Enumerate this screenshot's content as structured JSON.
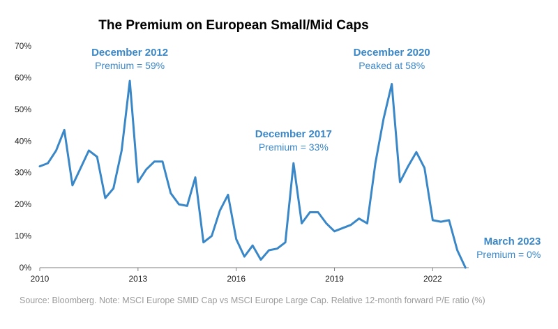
{
  "colors": {
    "line": "#3a87c8",
    "annotation": "#3a87c8",
    "axis": "#7f7f7f"
  },
  "chart_data": {
    "type": "line",
    "title": "The Premium on European Small/Mid Caps",
    "xlabel": "",
    "ylabel": "",
    "xlim": [
      2010,
      2023.1
    ],
    "ylim": [
      0,
      70
    ],
    "grid": false,
    "legend": "none",
    "x_ticks": [
      2010,
      2013,
      2016,
      2019,
      2022
    ],
    "x_tick_labels": [
      "2010",
      "2013",
      "2016",
      "2019",
      "2022"
    ],
    "y_ticks": [
      0,
      10,
      20,
      30,
      40,
      50,
      60,
      70
    ],
    "y_tick_labels": [
      "0%",
      "10%",
      "20%",
      "30%",
      "40%",
      "50%",
      "60%",
      "70%"
    ],
    "series": [
      {
        "x": [
          2010.0,
          2010.25,
          2010.5,
          2010.75,
          2011.0,
          2011.25,
          2011.5,
          2011.75,
          2012.0,
          2012.25,
          2012.5,
          2012.75,
          2013.0,
          2013.25,
          2013.5,
          2013.75,
          2014.0,
          2014.25,
          2014.5,
          2014.75,
          2015.0,
          2015.25,
          2015.5,
          2015.75,
          2016.0,
          2016.25,
          2016.5,
          2016.75,
          2017.0,
          2017.25,
          2017.5,
          2017.75,
          2018.0,
          2018.25,
          2018.5,
          2018.75,
          2019.0,
          2019.25,
          2019.5,
          2019.75,
          2020.0,
          2020.25,
          2020.5,
          2020.75,
          2021.0,
          2021.25,
          2021.5,
          2021.75,
          2022.0,
          2022.25,
          2022.5,
          2022.75,
          2023.0
        ],
        "values": [
          32,
          33,
          37,
          43.5,
          26,
          31.5,
          37,
          35,
          22,
          25,
          37,
          59,
          27,
          31,
          33.5,
          33.5,
          23.5,
          20,
          19.5,
          28.5,
          8,
          10,
          18,
          23,
          9,
          3.5,
          7,
          2.5,
          5.5,
          6,
          8,
          33,
          14,
          17.5,
          17.5,
          14,
          11.5,
          12.5,
          13.5,
          15.5,
          14,
          33,
          47,
          58,
          27,
          32,
          36.5,
          31.5,
          15,
          14.5,
          15,
          5.5,
          0
        ]
      }
    ],
    "annotations": [
      {
        "x": 2012.75,
        "y": 59,
        "title": "December 2012",
        "text": "Premium = 59%",
        "anchor": "middle"
      },
      {
        "x": 2017.75,
        "y": 33,
        "title": "December 2017",
        "text": "Premium = 33%",
        "anchor": "middle"
      },
      {
        "x": 2020.75,
        "y": 58,
        "title": "December 2020",
        "text": "Peaked at 58%",
        "anchor": "middle"
      },
      {
        "x": 2023.0,
        "y": 0,
        "title": "March 2023",
        "text": "Premium = 0%",
        "anchor": "end"
      }
    ],
    "source": "Source: Bloomberg. Note: MSCI Europe SMID Cap vs MSCI Europe Large Cap. Relative 12-month forward P/E ratio (%)"
  }
}
